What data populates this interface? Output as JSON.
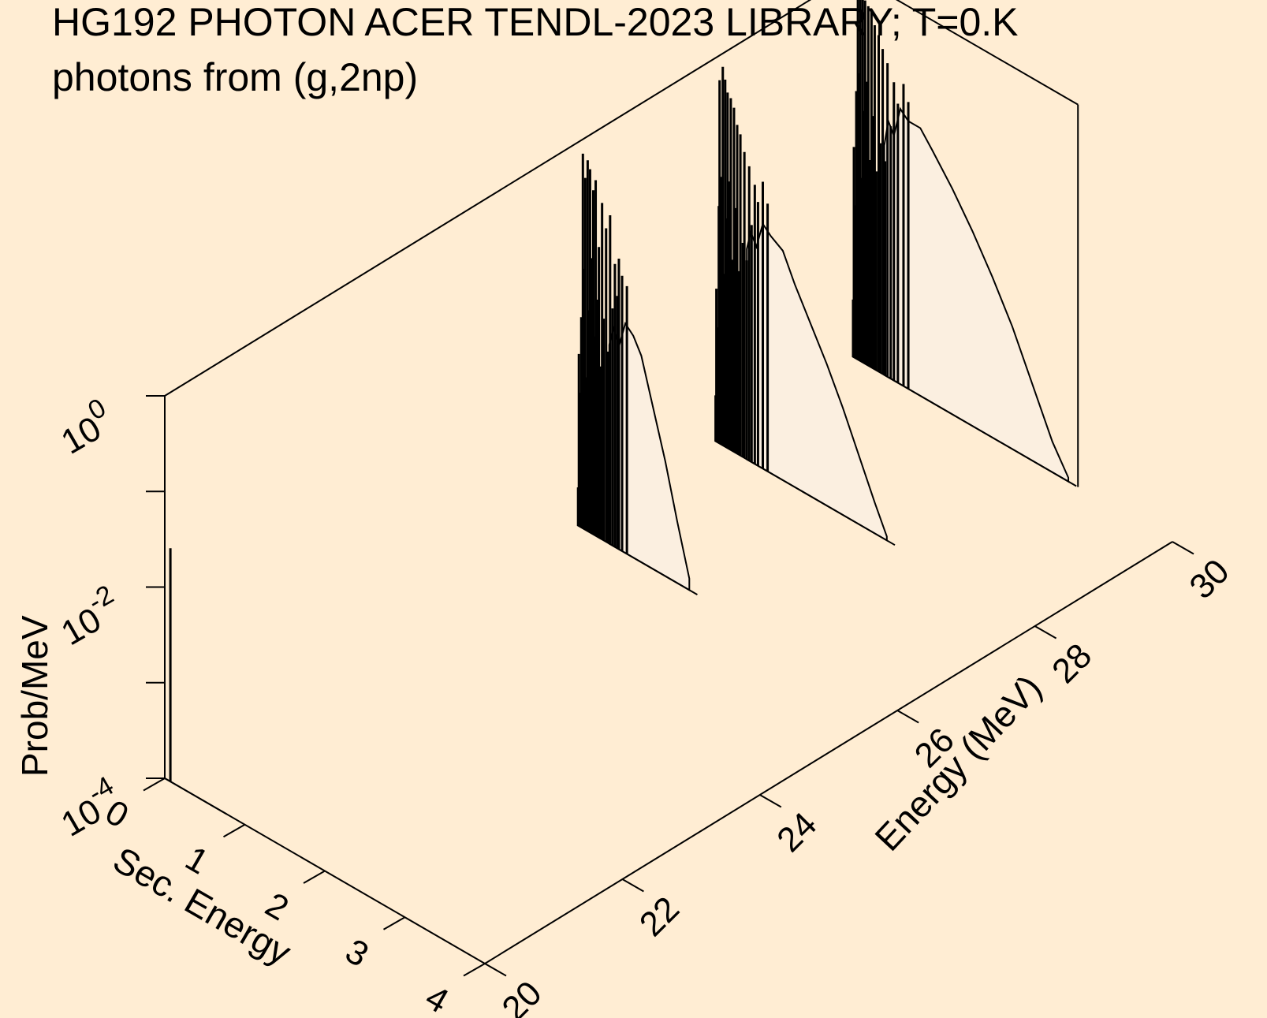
{
  "title": "HG192 PHOTON ACER TENDL-2023 LIBRARY; T=0.K",
  "subtitle": "photons from (g,2np)",
  "chart_data": {
    "type": "area",
    "projection": "3d-waterfall",
    "x_label": "Sec. Energy",
    "y_label": "Energy (MeV)",
    "z_label": "Prob/MeV",
    "x_range": [
      0,
      4
    ],
    "y_range": [
      20,
      30
    ],
    "z_range": [
      0.0001,
      1
    ],
    "z_scale": "log",
    "x_ticks": [
      "0",
      "1",
      "2",
      "3",
      "4"
    ],
    "y_ticks": [
      "20",
      "22",
      "24",
      "26",
      "28",
      "30"
    ],
    "z_ticks": [
      {
        "base": "10",
        "exp": "0"
      },
      {
        "base": "10",
        "exp": "-2"
      },
      {
        "base": "10",
        "exp": "-4"
      }
    ],
    "fill_color": "#fbefe0",
    "series": [
      {
        "incident_energy": 20.0,
        "lines": [
          {
            "x": 0.07,
            "z": 0.61
          }
        ],
        "curve": []
      },
      {
        "incident_energy": 26.0,
        "lines": [
          {
            "x": 0.01,
            "z": 0.1
          },
          {
            "x": 0.02,
            "z": 0.45
          },
          {
            "x": 0.03,
            "z": 0.35
          },
          {
            "x": 0.05,
            "z": 0.55
          },
          {
            "x": 0.07,
            "z": 0.98
          },
          {
            "x": 0.08,
            "z": 0.68
          },
          {
            "x": 0.1,
            "z": 0.92
          },
          {
            "x": 0.11,
            "z": 0.4
          },
          {
            "x": 0.13,
            "z": 0.97
          },
          {
            "x": 0.15,
            "z": 0.58
          },
          {
            "x": 0.16,
            "z": 0.95
          },
          {
            "x": 0.18,
            "z": 0.72
          },
          {
            "x": 0.2,
            "z": 0.9
          },
          {
            "x": 0.22,
            "z": 0.52
          },
          {
            "x": 0.23,
            "z": 0.93
          },
          {
            "x": 0.25,
            "z": 0.62
          },
          {
            "x": 0.27,
            "z": 0.76
          },
          {
            "x": 0.29,
            "z": 0.45
          },
          {
            "x": 0.31,
            "z": 0.88
          },
          {
            "x": 0.33,
            "z": 0.58
          },
          {
            "x": 0.36,
            "z": 0.82
          },
          {
            "x": 0.38,
            "z": 0.5
          },
          {
            "x": 0.41,
            "z": 0.86
          },
          {
            "x": 0.44,
            "z": 0.62
          },
          {
            "x": 0.47,
            "z": 0.74
          },
          {
            "x": 0.5,
            "z": 0.66
          },
          {
            "x": 0.52,
            "z": 0.76
          },
          {
            "x": 0.56,
            "z": 0.72
          },
          {
            "x": 0.62,
            "z": 0.7
          }
        ],
        "curve": [
          [
            0.4,
            0.52
          ],
          [
            0.45,
            0.57
          ],
          [
            0.52,
            0.53
          ],
          [
            0.6,
            0.6
          ],
          [
            0.7,
            0.58
          ],
          [
            0.8,
            0.54
          ],
          [
            0.95,
            0.42
          ],
          [
            1.1,
            0.3
          ],
          [
            1.25,
            0.16
          ],
          [
            1.4,
            0.03
          ]
        ]
      },
      {
        "incident_energy": 28.0,
        "lines": [
          {
            "x": 0.01,
            "z": 0.12
          },
          {
            "x": 0.02,
            "z": 0.4
          },
          {
            "x": 0.03,
            "z": 0.3
          },
          {
            "x": 0.05,
            "z": 0.62
          },
          {
            "x": 0.06,
            "z": 0.95
          },
          {
            "x": 0.08,
            "z": 0.7
          },
          {
            "x": 0.1,
            "z": 0.99
          },
          {
            "x": 0.11,
            "z": 0.45
          },
          {
            "x": 0.13,
            "z": 0.96
          },
          {
            "x": 0.15,
            "z": 0.6
          },
          {
            "x": 0.16,
            "z": 0.93
          },
          {
            "x": 0.18,
            "z": 0.7
          },
          {
            "x": 0.2,
            "z": 0.92
          },
          {
            "x": 0.22,
            "z": 0.5
          },
          {
            "x": 0.24,
            "z": 0.9
          },
          {
            "x": 0.26,
            "z": 0.64
          },
          {
            "x": 0.28,
            "z": 0.86
          },
          {
            "x": 0.3,
            "z": 0.48
          },
          {
            "x": 0.32,
            "z": 0.84
          },
          {
            "x": 0.35,
            "z": 0.56
          },
          {
            "x": 0.37,
            "z": 0.8
          },
          {
            "x": 0.4,
            "z": 0.52
          },
          {
            "x": 0.43,
            "z": 0.77
          },
          {
            "x": 0.46,
            "z": 0.62
          },
          {
            "x": 0.5,
            "z": 0.73
          },
          {
            "x": 0.54,
            "z": 0.69
          },
          {
            "x": 0.6,
            "z": 0.75
          },
          {
            "x": 0.66,
            "z": 0.7
          }
        ],
        "curve": [
          [
            0.4,
            0.55
          ],
          [
            0.45,
            0.6
          ],
          [
            0.52,
            0.57
          ],
          [
            0.6,
            0.64
          ],
          [
            0.7,
            0.62
          ],
          [
            0.85,
            0.6
          ],
          [
            1.0,
            0.53
          ],
          [
            1.2,
            0.45
          ],
          [
            1.4,
            0.37
          ],
          [
            1.6,
            0.28
          ],
          [
            1.8,
            0.18
          ],
          [
            2.0,
            0.08
          ],
          [
            2.15,
            0.01
          ]
        ]
      },
      {
        "incident_energy": 30.0,
        "lines": [
          {
            "x": 0.01,
            "z": 0.15
          },
          {
            "x": 0.02,
            "z": 0.55
          },
          {
            "x": 0.04,
            "z": 0.4
          },
          {
            "x": 0.05,
            "z": 0.7
          },
          {
            "x": 0.07,
            "z": 0.99
          },
          {
            "x": 0.08,
            "z": 0.75
          },
          {
            "x": 0.1,
            "z": 0.98
          },
          {
            "x": 0.11,
            "z": 0.48
          },
          {
            "x": 0.13,
            "z": 0.96
          },
          {
            "x": 0.15,
            "z": 0.66
          },
          {
            "x": 0.16,
            "z": 0.95
          },
          {
            "x": 0.18,
            "z": 0.74
          },
          {
            "x": 0.2,
            "z": 0.94
          },
          {
            "x": 0.22,
            "z": 0.54
          },
          {
            "x": 0.24,
            "z": 0.93
          },
          {
            "x": 0.26,
            "z": 0.66
          },
          {
            "x": 0.28,
            "z": 0.9
          },
          {
            "x": 0.3,
            "z": 0.52
          },
          {
            "x": 0.33,
            "z": 0.88
          },
          {
            "x": 0.35,
            "z": 0.6
          },
          {
            "x": 0.38,
            "z": 0.85
          },
          {
            "x": 0.41,
            "z": 0.56
          },
          {
            "x": 0.44,
            "z": 0.82
          },
          {
            "x": 0.48,
            "z": 0.66
          },
          {
            "x": 0.52,
            "z": 0.78
          },
          {
            "x": 0.57,
            "z": 0.73
          },
          {
            "x": 0.64,
            "z": 0.79
          },
          {
            "x": 0.7,
            "z": 0.75
          }
        ],
        "curve": [
          [
            0.4,
            0.6
          ],
          [
            0.45,
            0.67
          ],
          [
            0.52,
            0.64
          ],
          [
            0.6,
            0.72
          ],
          [
            0.7,
            0.7
          ],
          [
            0.85,
            0.7
          ],
          [
            1.0,
            0.66
          ],
          [
            1.25,
            0.59
          ],
          [
            1.5,
            0.51
          ],
          [
            1.75,
            0.42
          ],
          [
            2.0,
            0.32
          ],
          [
            2.25,
            0.2
          ],
          [
            2.5,
            0.08
          ],
          [
            2.7,
            0.01
          ]
        ]
      }
    ]
  }
}
